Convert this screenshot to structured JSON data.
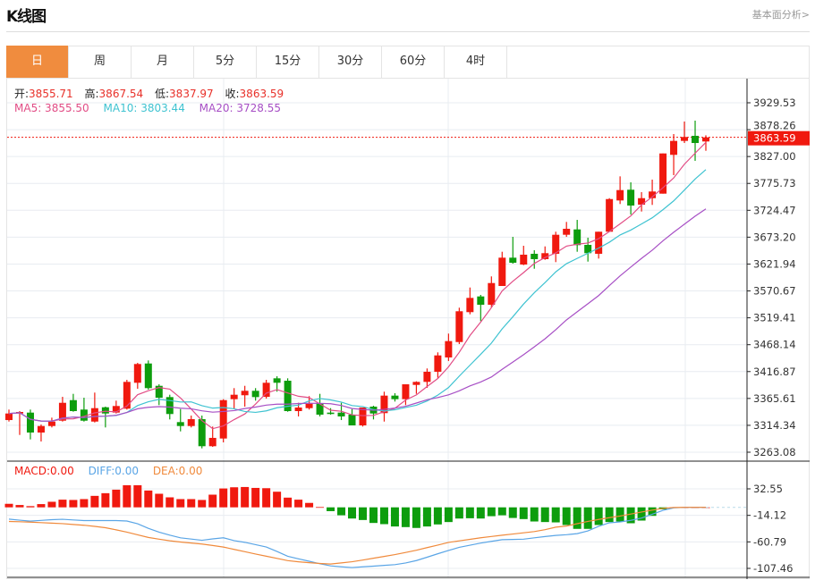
{
  "header": {
    "title": "K线图",
    "more_link": "基本面分析>"
  },
  "tabs": [
    {
      "label": "日",
      "active": true
    },
    {
      "label": "周"
    },
    {
      "label": "月"
    },
    {
      "label": "5分"
    },
    {
      "label": "15分"
    },
    {
      "label": "30分"
    },
    {
      "label": "60分"
    },
    {
      "label": "4时"
    }
  ],
  "ohlc_legend": {
    "open_label": "开:",
    "open": "3855.71",
    "high_label": "高:",
    "high": "3867.54",
    "low_label": "低:",
    "low": "3837.97",
    "close_label": "收:",
    "close": "3863.59"
  },
  "ma_legend": {
    "ma5": "MA5: 3855.50",
    "ma10": "MA10: 3803.44",
    "ma20": "MA20: 3728.55"
  },
  "macd_legend": {
    "macd": "MACD:0.00",
    "diff": "DIFF:0.00",
    "dea": "DEA:0.00"
  },
  "colors": {
    "up": "#f0190f",
    "down": "#0d9d0d",
    "ma5": "#e24d86",
    "ma10": "#3fc3d1",
    "ma20": "#a74fc5",
    "diff": "#5aa5e6",
    "dea": "#f08a3c",
    "accent": "#f08c3e"
  },
  "chart_data": [
    {
      "type": "candlestick",
      "y_ticks": [
        "3929.53",
        "3878.26",
        "3827.00",
        "3775.73",
        "3724.47",
        "3673.20",
        "3621.94",
        "3570.67",
        "3519.41",
        "3468.14",
        "3416.87",
        "3365.61",
        "3314.34",
        "3263.08"
      ],
      "last_price": "3863.59",
      "ma_periods": [
        5,
        10,
        20
      ],
      "grid": true,
      "ohlc": [
        [
          3324.4,
          3344.4,
          3321.5,
          3336.9
        ],
        [
          3336.9,
          3341.5,
          3296.0,
          3339.8
        ],
        [
          3338.6,
          3344.4,
          3287.5,
          3300.6
        ],
        [
          3300.6,
          3315.9,
          3283.5,
          3313.0
        ],
        [
          3313.0,
          3329.0,
          3310.3,
          3321.5
        ],
        [
          3323.2,
          3368.7,
          3321.5,
          3357.3
        ],
        [
          3362.4,
          3374.4,
          3340.3,
          3341.5
        ],
        [
          3344.4,
          3367.0,
          3321.5,
          3323.2
        ],
        [
          3321.5,
          3376.8,
          3319.8,
          3347.1
        ],
        [
          3348.8,
          3350.0,
          3310.3,
          3336.9
        ],
        [
          3338.6,
          3361.4,
          3336.9,
          3351.2
        ],
        [
          3346.1,
          3401.1,
          3344.4,
          3397.2
        ],
        [
          3395.5,
          3433.5,
          3384.1,
          3431.3
        ],
        [
          3432.3,
          3438.1,
          3382.4,
          3385.3
        ],
        [
          3389.7,
          3392.6,
          3352.9,
          3367.0
        ],
        [
          3368.2,
          3372.7,
          3325.6,
          3335.9
        ],
        [
          3320.5,
          3345.4,
          3302.8,
          3313.0
        ],
        [
          3313.0,
          3333.0,
          3310.3,
          3326.1
        ],
        [
          3326.1,
          3333.0,
          3270.4,
          3274.5
        ],
        [
          3274.5,
          3312.0,
          3273.3,
          3290.4
        ],
        [
          3289.2,
          3364.2,
          3281.8,
          3362.4
        ],
        [
          3364.2,
          3385.3,
          3346.1,
          3372.7
        ],
        [
          3371.7,
          3389.7,
          3350.0,
          3380.2
        ],
        [
          3380.2,
          3385.3,
          3361.4,
          3368.2
        ],
        [
          3368.7,
          3401.1,
          3365.4,
          3395.5
        ],
        [
          3404.0,
          3407.9,
          3378.5,
          3395.5
        ],
        [
          3399.4,
          3404.0,
          3340.3,
          3341.5
        ],
        [
          3341.5,
          3357.3,
          3331.3,
          3348.3
        ],
        [
          3347.1,
          3370.0,
          3344.4,
          3355.6
        ],
        [
          3356.8,
          3374.4,
          3331.3,
          3334.7
        ],
        [
          3338.6,
          3347.1,
          3334.7,
          3335.9
        ],
        [
          3338.6,
          3357.3,
          3324.4,
          3331.3
        ],
        [
          3334.7,
          3345.4,
          3314.2,
          3314.2
        ],
        [
          3314.2,
          3348.3,
          3312.0,
          3348.3
        ],
        [
          3350.0,
          3351.7,
          3325.6,
          3336.9
        ],
        [
          3337.6,
          3378.5,
          3321.5,
          3371.0
        ],
        [
          3371.0,
          3375.6,
          3359.7,
          3364.2
        ],
        [
          3364.2,
          3392.6,
          3352.9,
          3392.6
        ],
        [
          3391.4,
          3398.3,
          3374.4,
          3397.2
        ],
        [
          3397.2,
          3422.8,
          3385.8,
          3416.5
        ],
        [
          3416.5,
          3453.5,
          3405.1,
          3447.7
        ],
        [
          3443.8,
          3489.3,
          3437.0,
          3475.0
        ],
        [
          3473.2,
          3538.7,
          3469.3,
          3531.9
        ],
        [
          3530.2,
          3577.2,
          3526.1,
          3557.4
        ],
        [
          3560.2,
          3563.1,
          3513.1,
          3544.3
        ],
        [
          3544.3,
          3598.4,
          3539.2,
          3585.7
        ],
        [
          3580.1,
          3645.4,
          3580.1,
          3634.1
        ],
        [
          3634.1,
          3673.8,
          3622.7,
          3624.4
        ],
        [
          3621.0,
          3656.8,
          3619.8,
          3639.8
        ],
        [
          3641.5,
          3648.3,
          3613.0,
          3631.3
        ],
        [
          3631.3,
          3655.6,
          3630.1,
          3642.7
        ],
        [
          3641.5,
          3683.6,
          3625.6,
          3677.8
        ],
        [
          3677.8,
          3702.3,
          3673.8,
          3689.2
        ],
        [
          3688.0,
          3706.2,
          3645.4,
          3658.0
        ],
        [
          3658.5,
          3672.2,
          3626.6,
          3642.7
        ],
        [
          3641.5,
          3683.6,
          3632.4,
          3683.6
        ],
        [
          3683.6,
          3747.6,
          3683.6,
          3745.9
        ],
        [
          3743.2,
          3789.2,
          3736.4,
          3763.0
        ],
        [
          3763.7,
          3777.8,
          3716.4,
          3733.5
        ],
        [
          3735.2,
          3759.1,
          3722.1,
          3747.6
        ],
        [
          3747.6,
          3783.0,
          3734.7,
          3760.3
        ],
        [
          3756.2,
          3832.9,
          3756.2,
          3832.9
        ],
        [
          3830.2,
          3869.9,
          3791.5,
          3856.8
        ],
        [
          3856.8,
          3893.8,
          3852.8,
          3864.3
        ],
        [
          3866.5,
          3895.5,
          3818.8,
          3852.8
        ],
        [
          3855.71,
          3867.54,
          3837.97,
          3863.59
        ]
      ]
    },
    {
      "type": "bar+line",
      "y_ticks": [
        "32.55",
        "-14.12",
        "-60.79",
        "-107.46"
      ],
      "macd": [
        6.2,
        4.1,
        2.1,
        5.7,
        9.8,
        13.5,
        13.0,
        14.5,
        20.2,
        24.9,
        31.1,
        38.9,
        38.9,
        29.6,
        23.9,
        17.6,
        14.5,
        14.5,
        13.0,
        22.3,
        33.2,
        35.3,
        35.8,
        34.2,
        33.7,
        27.5,
        17.1,
        13.5,
        7.8,
        0.5,
        -6.7,
        -14.0,
        -19.7,
        -22.3,
        -27.5,
        -29.6,
        -33.7,
        -34.8,
        -36.3,
        -33.7,
        -30.1,
        -25.9,
        -19.7,
        -19.2,
        -19.7,
        -15.6,
        -14.0,
        -18.7,
        -20.7,
        -24.9,
        -25.9,
        -26.5,
        -31.1,
        -37.9,
        -37.9,
        -31.1,
        -25.9,
        -24.9,
        -28.0,
        -23.3,
        -15.0,
        -3.6,
        0,
        0,
        0,
        0
      ],
      "diff": [
        -20.7,
        -22.6,
        -24.3,
        -23.0,
        -21.7,
        -21.0,
        -22.2,
        -23.3,
        -23.3,
        -23.3,
        -23.3,
        -24.1,
        -28.9,
        -37.0,
        -43.7,
        -49.0,
        -53.7,
        -55.8,
        -58.0,
        -55.5,
        -53.6,
        -58.6,
        -61.6,
        -65.7,
        -69.8,
        -77.7,
        -86.1,
        -90.7,
        -94.9,
        -99.3,
        -103.0,
        -104.7,
        -106.0,
        -104.7,
        -103.5,
        -102.2,
        -100.9,
        -97.9,
        -93.7,
        -87.8,
        -81.7,
        -75.9,
        -70.4,
        -66.6,
        -62.9,
        -59.9,
        -56.9,
        -56.5,
        -56.0,
        -53.7,
        -51.4,
        -49.5,
        -48.2,
        -46.3,
        -41.5,
        -33.5,
        -27.2,
        -25.7,
        -22.9,
        -18.9,
        -12.2,
        -5.3,
        -1.0,
        0,
        0,
        0
      ],
      "dea": [
        -24.9,
        -25.4,
        -26.0,
        -26.9,
        -27.8,
        -28.7,
        -30.2,
        -31.5,
        -33.5,
        -35.9,
        -39.6,
        -43.7,
        -48.4,
        -53.0,
        -56.0,
        -58.9,
        -61.0,
        -62.8,
        -64.6,
        -67.1,
        -69.9,
        -74.0,
        -78.1,
        -82.2,
        -86.0,
        -89.9,
        -93.8,
        -95.9,
        -97.4,
        -98.8,
        -99.8,
        -97.8,
        -95.8,
        -92.8,
        -89.6,
        -86.4,
        -83.2,
        -79.4,
        -75.5,
        -70.9,
        -66.5,
        -61.7,
        -59.0,
        -56.3,
        -53.6,
        -51.3,
        -49.1,
        -47.0,
        -44.8,
        -42.7,
        -39.3,
        -34.9,
        -32.9,
        -28.8,
        -24.8,
        -21.3,
        -18.2,
        -15.3,
        -11.8,
        -8.3,
        -4.9,
        -1.8,
        -0.3,
        0,
        0,
        0
      ]
    }
  ]
}
